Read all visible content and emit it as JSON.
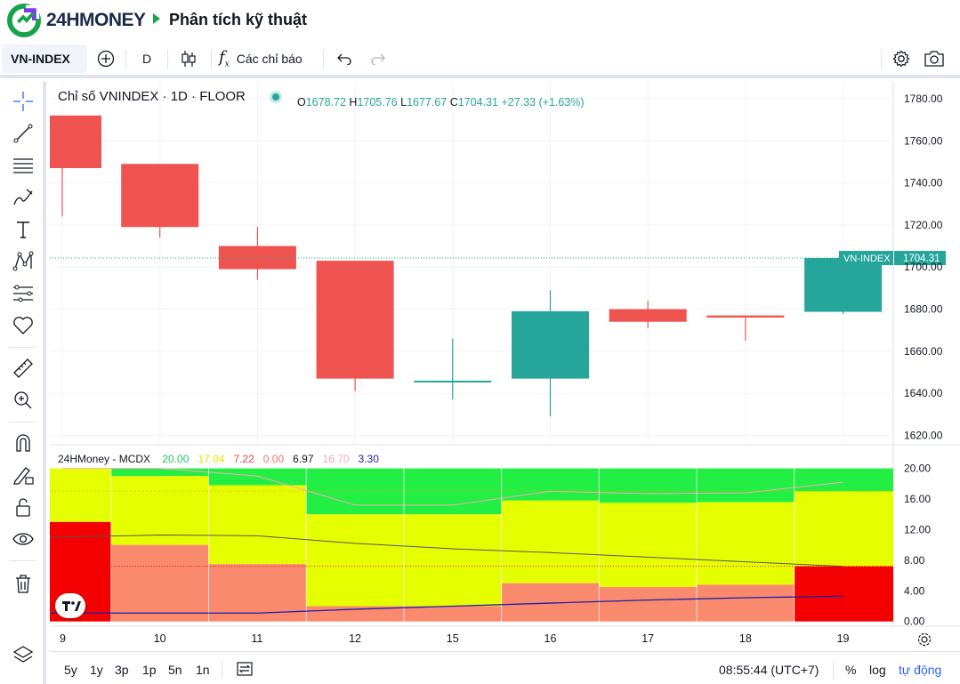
{
  "header": {
    "logo_text": "24HMONEY",
    "page_title": "Phân tích kỹ thuật"
  },
  "toolbar": {
    "symbol": "VN-INDEX",
    "interval": "D",
    "indicators_label": "Các chỉ báo"
  },
  "legend": {
    "title": "Chỉ số VNINDEX · 1D · FLOOR",
    "o_label": "O",
    "o_value": "1678.72",
    "h_label": "H",
    "h_value": "1705.76",
    "l_label": "L",
    "l_value": "1677.67",
    "c_label": "C",
    "c_value": "1704.31",
    "change": "+27.33 (+1.63%)"
  },
  "price_tag": {
    "symbol": "VN-INDEX",
    "value": "1704.31"
  },
  "indicator": {
    "name": "24HMoney - MCDX",
    "values": [
      {
        "text": "20.00",
        "color": "#22c55e"
      },
      {
        "text": "17.04",
        "color": "#e6e600"
      },
      {
        "text": "7.22",
        "color": "#ef4444"
      },
      {
        "text": "0.00",
        "color": "#f87171"
      },
      {
        "text": "6.97",
        "color": "#131722"
      },
      {
        "text": "16.70",
        "color": "#f9a8b4"
      },
      {
        "text": "3.30",
        "color": "#1e1ea8"
      }
    ]
  },
  "chart_data": {
    "type": "candlestick",
    "categories": [
      "9",
      "10",
      "11",
      "12",
      "15",
      "16",
      "17",
      "18",
      "19"
    ],
    "candles": [
      {
        "open": 1772,
        "high": 1772,
        "low": 1724,
        "close": 1747
      },
      {
        "open": 1749,
        "high": 1749,
        "low": 1714,
        "close": 1719
      },
      {
        "open": 1710,
        "high": 1719,
        "low": 1694,
        "close": 1699
      },
      {
        "open": 1703,
        "high": 1703,
        "low": 1641,
        "close": 1647
      },
      {
        "open": 1646,
        "high": 1666,
        "low": 1637,
        "close": 1646
      },
      {
        "open": 1647,
        "high": 1689,
        "low": 1629,
        "close": 1679
      },
      {
        "open": 1680,
        "high": 1684,
        "low": 1671,
        "close": 1674
      },
      {
        "open": 1677,
        "high": 1677,
        "low": 1665,
        "close": 1676
      },
      {
        "open": 1678.72,
        "high": 1705.76,
        "low": 1677.67,
        "close": 1704.31
      }
    ],
    "price_axis_ticks": [
      "1780.00",
      "1760.00",
      "1740.00",
      "1720.00",
      "1700.00",
      "1680.00",
      "1660.00",
      "1640.00",
      "1620.00"
    ],
    "ylim": [
      1616,
      1788
    ],
    "indicator_axis_ticks": [
      "20.00",
      "16.00",
      "12.00",
      "8.00",
      "4.00",
      "0.00"
    ],
    "indicator_ylim": [
      -0.5,
      21
    ],
    "mcdx": {
      "top": [
        20,
        19,
        17.8,
        14,
        14,
        15.8,
        15.5,
        15.6,
        17
      ],
      "mid": [
        13,
        10,
        7.5,
        2,
        2,
        5,
        4.5,
        4.8,
        7.2
      ],
      "first_red": 13,
      "last_red": 7.22,
      "gray_line": [
        11,
        11.3,
        11.2,
        10.2,
        9.5,
        9,
        8.4,
        7.8,
        7.2
      ],
      "blue_line": [
        1.1,
        1.1,
        1.1,
        1.6,
        2.0,
        2.4,
        2.8,
        3.1,
        3.3
      ]
    },
    "colors": {
      "up": "#26a69a",
      "down": "#ef5350",
      "green": "#22ee44",
      "yellow": "#e6ff00",
      "salmon": "#fa8a6e",
      "red": "#f40000"
    }
  },
  "bottom": {
    "ranges": [
      "5y",
      "1y",
      "3p",
      "1p",
      "5n",
      "1n"
    ],
    "clock": "08:55:44 (UTC+7)",
    "percent": "%",
    "log": "log",
    "auto": "tự động"
  }
}
